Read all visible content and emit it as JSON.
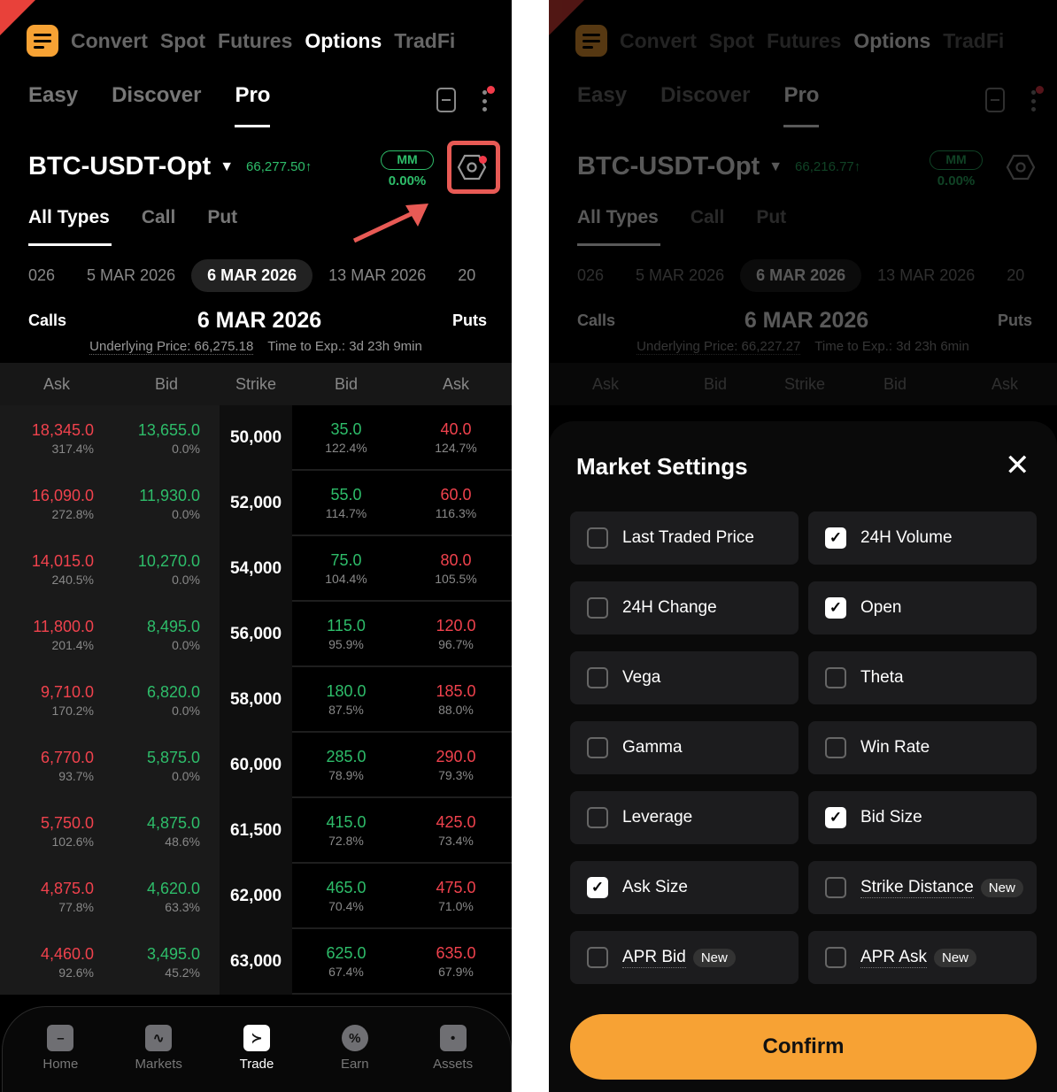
{
  "left": {
    "top_nav": [
      "Convert",
      "Spot",
      "Futures",
      "Options",
      "TradFi"
    ],
    "top_nav_active": "Options",
    "mode_tabs": [
      "Easy",
      "Discover",
      "Pro"
    ],
    "mode_active": "Pro",
    "pair": "BTC-USDT-Opt",
    "price": "66,277.50↑",
    "mm_label": "MM",
    "mm_pct": "0.00%",
    "type_tabs": [
      "All Types",
      "Call",
      "Put"
    ],
    "dates": [
      "026",
      "5 MAR 2026",
      "6 MAR 2026",
      "13 MAR 2026",
      "20"
    ],
    "active_date": "6 MAR 2026",
    "calls_label": "Calls",
    "puts_label": "Puts",
    "expiry_title": "6 MAR 2026",
    "underlying": "Underlying Price: 66,275.18",
    "time_to_exp": "Time to Exp.: 3d 23h 9min",
    "columns": [
      "Ask",
      "Bid",
      "Strike",
      "Bid",
      "Ask"
    ],
    "rows": [
      {
        "call_ask": "18,345.0",
        "call_ask_iv": "317.4%",
        "call_bid": "13,655.0",
        "call_bid_iv": "0.0%",
        "strike": "50,000",
        "put_bid": "35.0",
        "put_bid_iv": "122.4%",
        "put_ask": "40.0",
        "put_ask_iv": "124.7%"
      },
      {
        "call_ask": "16,090.0",
        "call_ask_iv": "272.8%",
        "call_bid": "11,930.0",
        "call_bid_iv": "0.0%",
        "strike": "52,000",
        "put_bid": "55.0",
        "put_bid_iv": "114.7%",
        "put_ask": "60.0",
        "put_ask_iv": "116.3%"
      },
      {
        "call_ask": "14,015.0",
        "call_ask_iv": "240.5%",
        "call_bid": "10,270.0",
        "call_bid_iv": "0.0%",
        "strike": "54,000",
        "put_bid": "75.0",
        "put_bid_iv": "104.4%",
        "put_ask": "80.0",
        "put_ask_iv": "105.5%"
      },
      {
        "call_ask": "11,800.0",
        "call_ask_iv": "201.4%",
        "call_bid": "8,495.0",
        "call_bid_iv": "0.0%",
        "strike": "56,000",
        "put_bid": "115.0",
        "put_bid_iv": "95.9%",
        "put_ask": "120.0",
        "put_ask_iv": "96.7%"
      },
      {
        "call_ask": "9,710.0",
        "call_ask_iv": "170.2%",
        "call_bid": "6,820.0",
        "call_bid_iv": "0.0%",
        "strike": "58,000",
        "put_bid": "180.0",
        "put_bid_iv": "87.5%",
        "put_ask": "185.0",
        "put_ask_iv": "88.0%"
      },
      {
        "call_ask": "6,770.0",
        "call_ask_iv": "93.7%",
        "call_bid": "5,875.0",
        "call_bid_iv": "0.0%",
        "strike": "60,000",
        "put_bid": "285.0",
        "put_bid_iv": "78.9%",
        "put_ask": "290.0",
        "put_ask_iv": "79.3%"
      },
      {
        "call_ask": "5,750.0",
        "call_ask_iv": "102.6%",
        "call_bid": "4,875.0",
        "call_bid_iv": "48.6%",
        "strike": "61,500",
        "put_bid": "415.0",
        "put_bid_iv": "72.8%",
        "put_ask": "425.0",
        "put_ask_iv": "73.4%"
      },
      {
        "call_ask": "4,875.0",
        "call_ask_iv": "77.8%",
        "call_bid": "4,620.0",
        "call_bid_iv": "63.3%",
        "strike": "62,000",
        "put_bid": "465.0",
        "put_bid_iv": "70.4%",
        "put_ask": "475.0",
        "put_ask_iv": "71.0%"
      },
      {
        "call_ask": "4,460.0",
        "call_ask_iv": "92.6%",
        "call_bid": "3,495.0",
        "call_bid_iv": "45.2%",
        "strike": "63,000",
        "put_bid": "625.0",
        "put_bid_iv": "67.4%",
        "put_ask": "635.0",
        "put_ask_iv": "67.9%"
      }
    ],
    "bottom_nav": [
      {
        "label": "Home",
        "icon": "home-icon"
      },
      {
        "label": "Markets",
        "icon": "chart-icon"
      },
      {
        "label": "Trade",
        "icon": "trade-icon"
      },
      {
        "label": "Earn",
        "icon": "percent-icon"
      },
      {
        "label": "Assets",
        "icon": "wallet-icon"
      }
    ],
    "bottom_nav_active": "Trade"
  },
  "right": {
    "price": "66,216.77↑",
    "underlying": "Underlying Price: 66,227.27",
    "time_to_exp": "Time to Exp.: 3d 23h 6min",
    "sheet": {
      "title": "Market Settings",
      "options": [
        {
          "label": "Last Traded Price",
          "checked": false
        },
        {
          "label": "24H Volume",
          "checked": true
        },
        {
          "label": "24H Change",
          "checked": false
        },
        {
          "label": "Open",
          "checked": true
        },
        {
          "label": "Vega",
          "checked": false
        },
        {
          "label": "Theta",
          "checked": false
        },
        {
          "label": "Gamma",
          "checked": false
        },
        {
          "label": "Win Rate",
          "checked": false
        },
        {
          "label": "Leverage",
          "checked": false
        },
        {
          "label": "Bid Size",
          "checked": true
        },
        {
          "label": "Ask Size",
          "checked": true
        },
        {
          "label": "Strike Distance",
          "checked": false,
          "badge": "New"
        },
        {
          "label": "APR Bid",
          "checked": false,
          "badge": "New"
        },
        {
          "label": "APR Ask",
          "checked": false,
          "badge": "New"
        }
      ],
      "confirm": "Confirm"
    }
  },
  "colors": {
    "accent": "#f7a234",
    "up": "#2ebd6a",
    "down": "#f0424d",
    "annotation": "#e85a55"
  }
}
